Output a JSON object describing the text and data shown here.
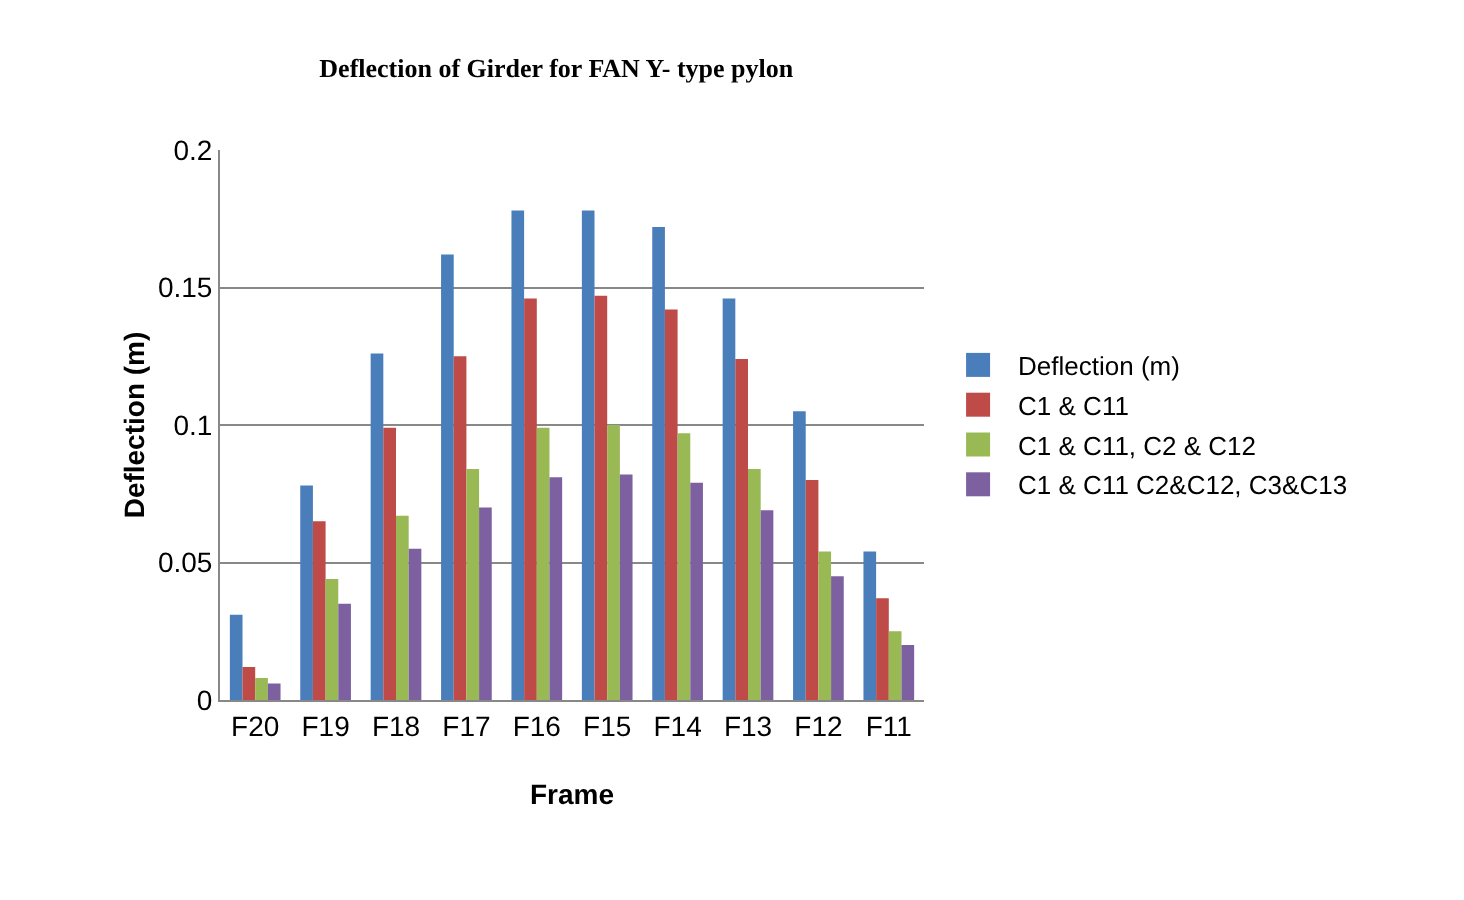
{
  "chart_data": {
    "type": "bar",
    "title": "Deflection of Girder for FAN Y- type pylon",
    "xlabel": "Frame",
    "ylabel": "Deflection (m)",
    "categories": [
      "F20",
      "F19",
      "F18",
      "F17",
      "F16",
      "F15",
      "F14",
      "F13",
      "F12",
      "F11"
    ],
    "series": [
      {
        "name": "Deflection (m)",
        "color": "#4a7ebb",
        "values": [
          0.031,
          0.078,
          0.126,
          0.162,
          0.178,
          0.178,
          0.172,
          0.146,
          0.105,
          0.054
        ]
      },
      {
        "name": "C1 & C11",
        "color": "#be4b48",
        "values": [
          0.012,
          0.065,
          0.099,
          0.125,
          0.146,
          0.147,
          0.142,
          0.124,
          0.08,
          0.037
        ]
      },
      {
        "name": "C1 & C11, C2 & C12",
        "color": "#98b954",
        "values": [
          0.008,
          0.044,
          0.067,
          0.084,
          0.099,
          0.1,
          0.097,
          0.084,
          0.054,
          0.025
        ]
      },
      {
        "name": "C1 & C11 C2&C12, C3&C13",
        "color": "#7d60a0",
        "values": [
          0.006,
          0.035,
          0.055,
          0.07,
          0.081,
          0.082,
          0.079,
          0.069,
          0.045,
          0.02
        ]
      }
    ],
    "ylim": [
      0,
      0.2
    ],
    "yticks": [
      0,
      0.05,
      0.1,
      0.15,
      0.2
    ],
    "grid": "y",
    "legend": "right"
  }
}
